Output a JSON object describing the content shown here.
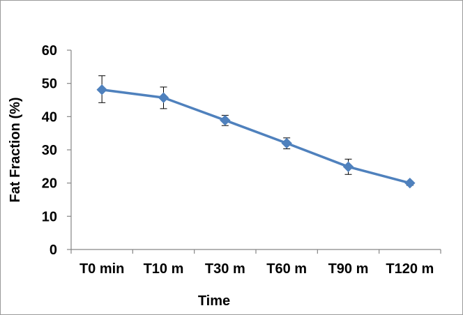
{
  "chart_data": {
    "type": "line",
    "title": "",
    "xlabel": "Time",
    "ylabel": "Fat Fraction (%)",
    "categories": [
      "T0 min",
      "T10 m",
      "T30 m",
      "T60 m",
      "T90 m",
      "T120 m"
    ],
    "ylim": [
      0,
      60
    ],
    "yticks": [
      "0",
      "10",
      "20",
      "30",
      "40",
      "50",
      "60"
    ],
    "grid": false,
    "legend": "none",
    "series": [
      {
        "values": [
          48.1,
          45.7,
          38.9,
          32.0,
          24.9,
          20.0
        ],
        "error_upper": [
          52.3,
          48.9,
          40.4,
          33.6,
          27.2,
          20.5
        ],
        "error_lower": [
          44.2,
          42.4,
          37.3,
          30.3,
          22.6,
          19.3
        ],
        "color": "#4F81BD"
      }
    ],
    "marker": "diamond"
  }
}
